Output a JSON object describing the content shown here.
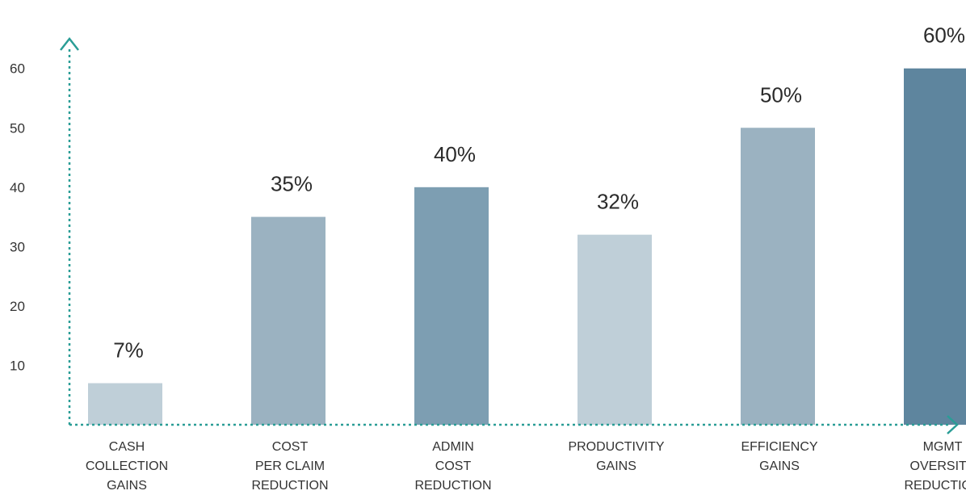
{
  "chart_data": {
    "type": "bar",
    "title": "",
    "xlabel": "",
    "ylabel": "",
    "ylim": [
      0,
      65
    ],
    "yticks": [
      10,
      20,
      30,
      40,
      50,
      60
    ],
    "grid": false,
    "legend": "none",
    "categories": [
      [
        "CASH",
        "COLLECTION",
        "GAINS"
      ],
      [
        "COST",
        "PER CLAIM",
        "REDUCTION"
      ],
      [
        "ADMIN",
        "COST",
        "REDUCTION"
      ],
      [
        "PRODUCTIVITY",
        "GAINS"
      ],
      [
        "EFFICIENCY",
        "GAINS"
      ],
      [
        "MGMT",
        "OVERSITE",
        "REDUCTION"
      ]
    ],
    "values": [
      7,
      35,
      40,
      32,
      50,
      60
    ],
    "data_labels": [
      "7%",
      "35%",
      "40%",
      "32%",
      "50%",
      "60%"
    ],
    "bar_colors": [
      "#bfcfd8",
      "#9bb2c1",
      "#7d9eb2",
      "#bfcfd8",
      "#9bb2c1",
      "#5e859e"
    ],
    "axis_color": "#2a9d96"
  }
}
